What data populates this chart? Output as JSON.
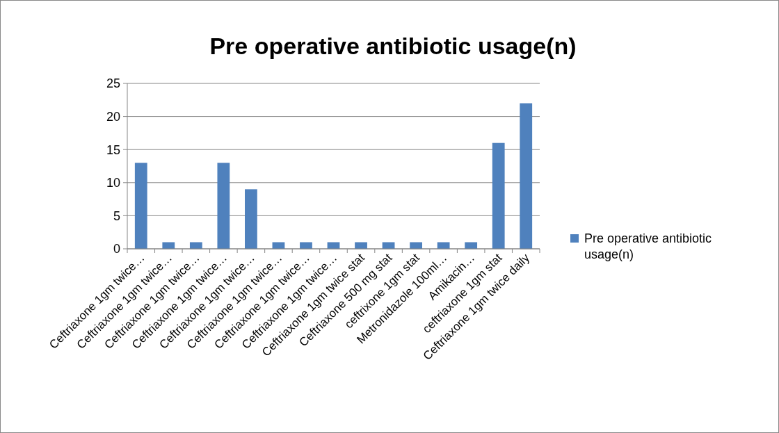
{
  "chart_data": {
    "type": "bar",
    "title": "Pre operative antibiotic usage(n)",
    "categories": [
      "Ceftriaxone 1gm twice…",
      "Ceftriaxone 1gm twice…",
      "Ceftriaxone 1gm twice…",
      "Ceftriaxone 1gm twice…",
      "Ceftriaxone 1gm twice…",
      "Ceftriaxone 1gm twice…",
      "Ceftriaxone 1gm twice…",
      "Ceftriaxone 1gm twice…",
      "Ceftriaxone 1gm twice stat",
      "Ceftriaxone 500 mg stat",
      "ceftrixone 1gm stat",
      "Metronidazole 100ml…",
      "Amikacin…",
      "ceftriaxone 1gm stat",
      "Ceftriaxone 1gm twice daily"
    ],
    "series": [
      {
        "name": "Pre operative antibiotic usage(n)",
        "color": "#4f81bd",
        "values": [
          13,
          1,
          1,
          13,
          9,
          1,
          1,
          1,
          1,
          1,
          1,
          1,
          1,
          16,
          22
        ]
      }
    ],
    "ylim": [
      0,
      25
    ],
    "yticks": [
      0,
      5,
      10,
      15,
      20,
      25
    ],
    "grid": "y",
    "legend": "right"
  }
}
